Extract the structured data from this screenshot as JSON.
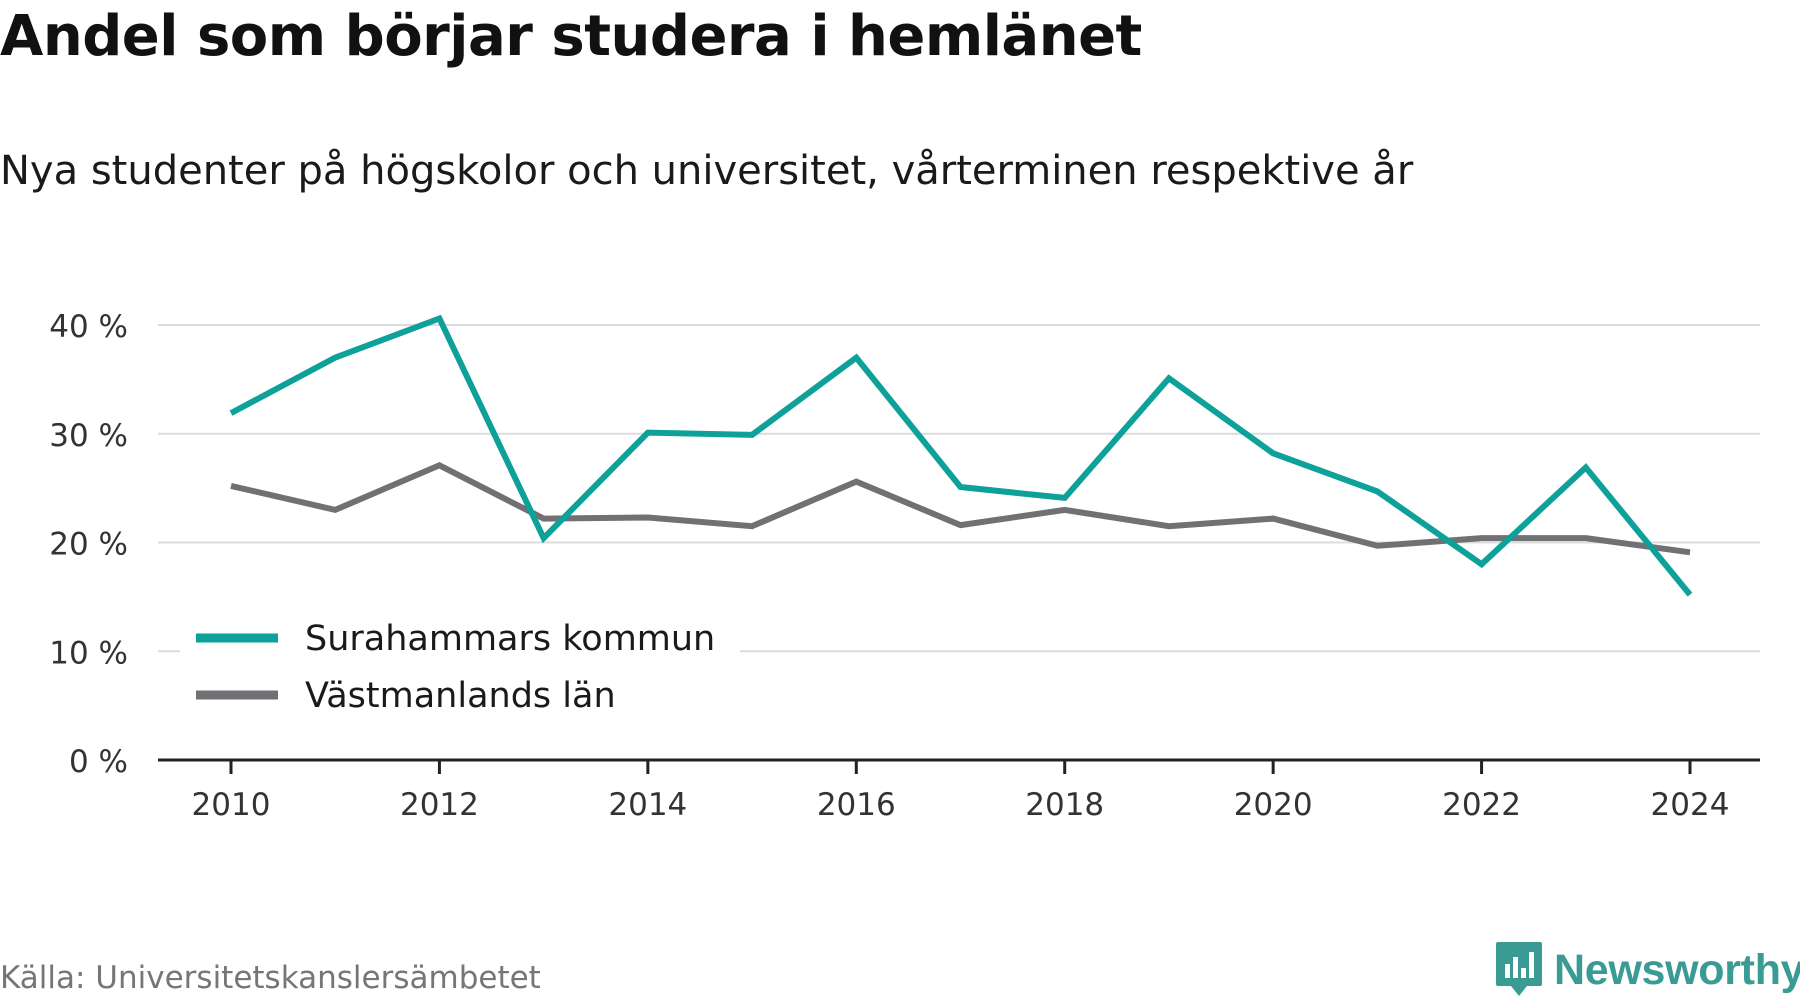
{
  "title": "Andel som börjar studera i hemlänet",
  "subtitle": "Nya studenter på högskolor och universitet, vårterminen respektive år",
  "source": "Källa: Universitetskanslersämbetet",
  "brand": {
    "name": "Newsworthy",
    "icon": "newsworthy-logo-icon",
    "color": "#3a9b94"
  },
  "chart_data": {
    "type": "line",
    "x": [
      2010,
      2011,
      2012,
      2013,
      2014,
      2015,
      2016,
      2017,
      2018,
      2019,
      2020,
      2021,
      2022,
      2023,
      2024
    ],
    "series": [
      {
        "name": "Surahammars kommun",
        "color": "#0ea19a",
        "values": [
          31.9,
          37.0,
          40.6,
          20.4,
          30.1,
          29.9,
          37.0,
          25.1,
          24.1,
          35.1,
          28.2,
          24.7,
          18.0,
          26.9,
          15.2
        ]
      },
      {
        "name": "Västmanlands län",
        "color": "#707075",
        "values": [
          25.2,
          23.0,
          27.1,
          22.2,
          22.3,
          21.5,
          25.6,
          21.6,
          23.0,
          21.5,
          22.2,
          19.7,
          20.4,
          20.4,
          19.1
        ]
      }
    ],
    "ylim": [
      0,
      40
    ],
    "yticks": [
      0,
      10,
      20,
      30,
      40
    ],
    "ytick_labels": [
      "0 %",
      "10 %",
      "20 %",
      "30 %",
      "40 %"
    ],
    "xticks": [
      2010,
      2012,
      2014,
      2016,
      2018,
      2020,
      2022,
      2024
    ],
    "xtick_labels": [
      "2010",
      "2012",
      "2014",
      "2016",
      "2018",
      "2020",
      "2022",
      "2024"
    ],
    "grid": true,
    "legend_position": "bottom-left",
    "xlabel": "",
    "ylabel": ""
  }
}
